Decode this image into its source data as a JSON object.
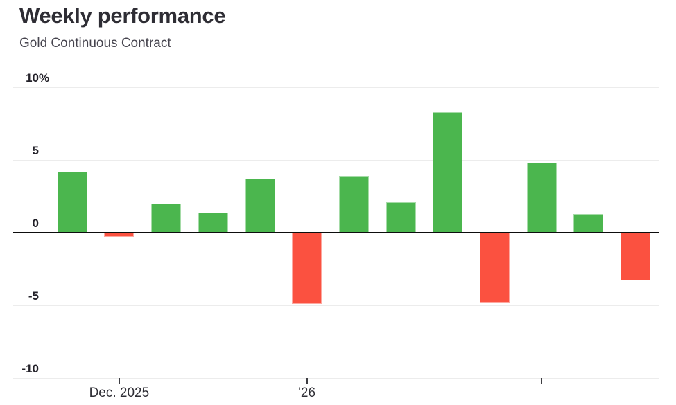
{
  "header": {
    "title": "Weekly performance",
    "subtitle": "Gold Continuous Contract"
  },
  "chart_data": {
    "type": "bar",
    "title": "Weekly performance",
    "subtitle": "Gold Continuous Contract",
    "unit": "%",
    "values": [
      4.2,
      -0.3,
      2.0,
      1.4,
      3.7,
      -4.9,
      3.9,
      2.1,
      8.3,
      -4.8,
      4.8,
      1.3,
      -3.3
    ],
    "x_ticks": [
      {
        "bar_index": 1,
        "label": "Dec. 2025"
      },
      {
        "bar_index": 5,
        "label": "'26"
      },
      {
        "bar_index": 10,
        "label": ""
      }
    ],
    "y_axis": {
      "min": -10,
      "max": 10,
      "ticks": [
        {
          "value": 10,
          "label": "10",
          "suffix": "%"
        },
        {
          "value": 5,
          "label": "5",
          "suffix": ""
        },
        {
          "value": 0,
          "label": "0",
          "suffix": ""
        },
        {
          "value": -5,
          "label": "-5",
          "suffix": ""
        },
        {
          "value": -10,
          "label": "-10",
          "suffix": ""
        }
      ]
    },
    "grid": "horizontal",
    "legend": "none",
    "colors": {
      "positive": "#4bb64e",
      "negative": "#fb5140",
      "zero_line": "#0d0d0d",
      "gridline": "#ececec",
      "title_text": "#2e2d34",
      "subtitle_text": "#46444e",
      "axis_text": "#232129"
    }
  }
}
